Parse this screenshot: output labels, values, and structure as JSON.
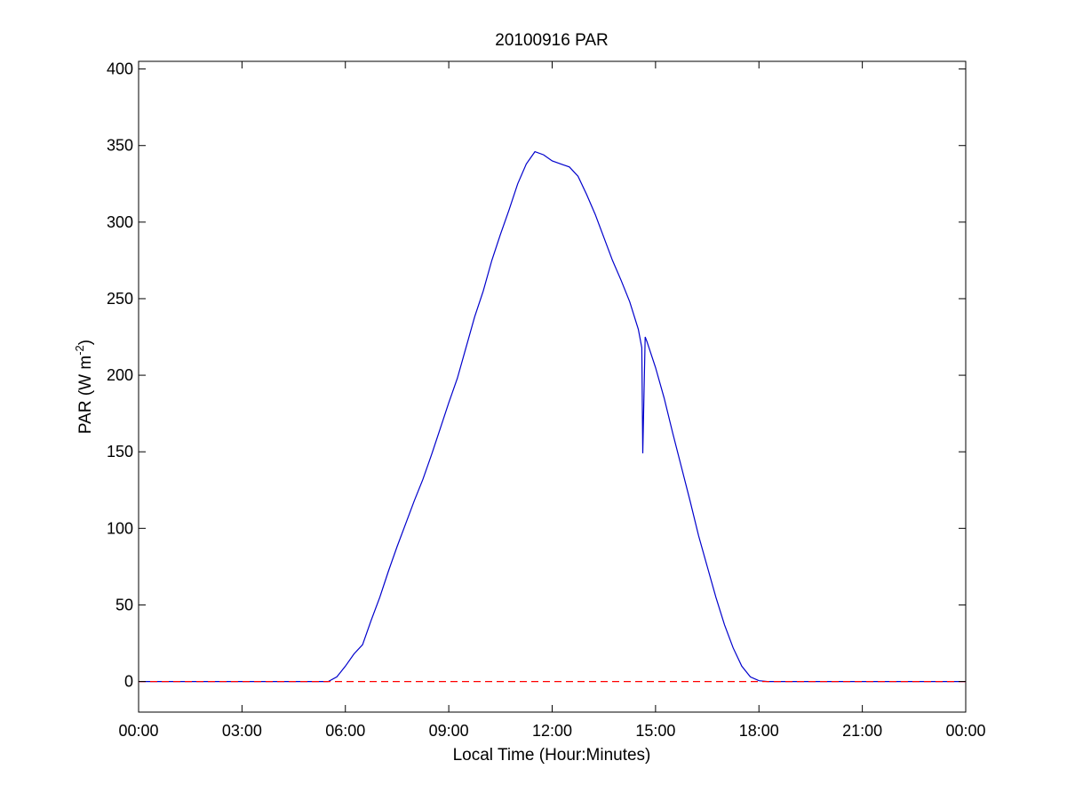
{
  "chart_data": {
    "type": "line",
    "title": "20100916 PAR",
    "xlabel": "Local Time (Hour:Minutes)",
    "ylabel_main": "PAR (W m",
    "ylabel_sup": "-2",
    "ylabel_close": ")",
    "xlim": [
      0,
      24
    ],
    "ylim": [
      -20,
      405
    ],
    "x_ticks": [
      0,
      3,
      6,
      9,
      12,
      15,
      18,
      21,
      24
    ],
    "x_tick_labels": [
      "00:00",
      "03:00",
      "06:00",
      "09:00",
      "12:00",
      "15:00",
      "18:00",
      "21:00",
      "00:00"
    ],
    "y_ticks": [
      0,
      50,
      100,
      150,
      200,
      250,
      300,
      350,
      400
    ],
    "y_tick_labels": [
      "0",
      "50",
      "100",
      "150",
      "200",
      "250",
      "300",
      "350",
      "400"
    ],
    "grid": false,
    "series": [
      {
        "color": "#0000cc",
        "style": "solid",
        "x": [
          0,
          5.5,
          5.75,
          6.0,
          6.25,
          6.5,
          6.75,
          7.0,
          7.25,
          7.5,
          7.75,
          8.0,
          8.25,
          8.5,
          8.75,
          9.0,
          9.25,
          9.5,
          9.75,
          10.0,
          10.25,
          10.5,
          10.75,
          11.0,
          11.25,
          11.5,
          11.75,
          12.0,
          12.25,
          12.5,
          12.75,
          13.0,
          13.25,
          13.5,
          13.75,
          14.0,
          14.25,
          14.5,
          14.6,
          14.63,
          14.7,
          14.75,
          15.0,
          15.25,
          15.5,
          15.75,
          16.0,
          16.25,
          16.5,
          16.75,
          17.0,
          17.25,
          17.5,
          17.75,
          18.0,
          18.25,
          18.5,
          24
        ],
        "y": [
          0,
          0,
          3,
          10,
          18,
          24,
          40,
          55,
          72,
          88,
          103,
          118,
          132,
          148,
          165,
          182,
          198,
          218,
          238,
          255,
          275,
          292,
          308,
          325,
          338,
          346,
          344,
          340,
          338,
          336,
          330,
          318,
          305,
          290,
          275,
          262,
          248,
          230,
          218,
          149,
          225,
          222,
          205,
          185,
          162,
          140,
          118,
          95,
          75,
          55,
          37,
          22,
          10,
          3,
          0.5,
          0,
          0,
          0
        ]
      },
      {
        "color": "#ff0000",
        "style": "dashed",
        "x": [
          0,
          24
        ],
        "y": [
          0,
          0
        ]
      }
    ]
  }
}
